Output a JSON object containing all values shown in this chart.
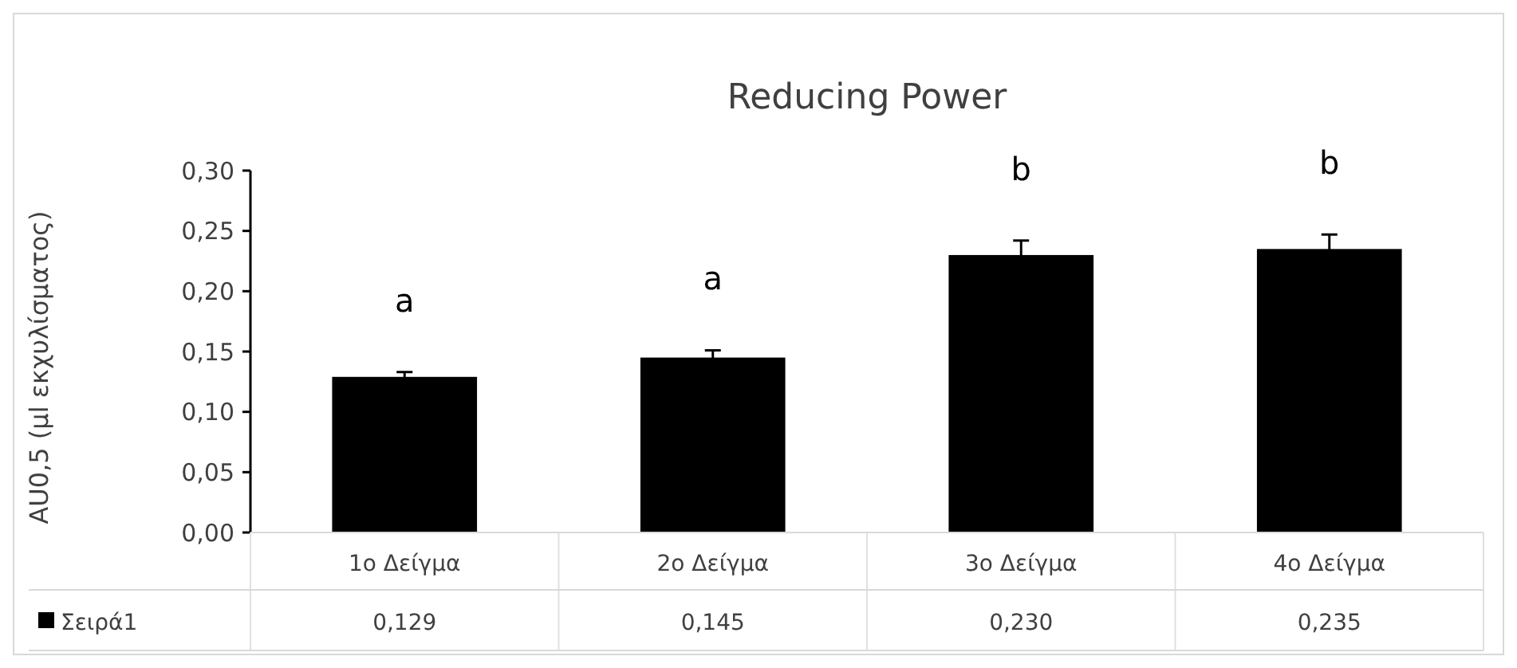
{
  "chart_data": {
    "type": "bar",
    "title": "Reducing Power",
    "ylabel": "AU0,5 (μl εκχυλίσματος)",
    "categories": [
      "1ο Δείγμα",
      "2ο Δείγμα",
      "3ο Δείγμα",
      "4ο Δείγμα"
    ],
    "series": [
      {
        "name": "Σειρά1",
        "color": "#000000",
        "values": [
          0.129,
          0.145,
          0.23,
          0.235
        ],
        "errors": [
          0.004,
          0.006,
          0.012,
          0.012
        ],
        "value_labels": [
          "0,129",
          "0,145",
          "0,230",
          "0,235"
        ]
      }
    ],
    "ylim": [
      0,
      0.3
    ],
    "yticks": [
      {
        "value": 0,
        "label": "0,00"
      },
      {
        "value": 0.05,
        "label": "0,05"
      },
      {
        "value": 0.1,
        "label": "0,10"
      },
      {
        "value": 0.15,
        "label": "0,15"
      },
      {
        "value": 0.2,
        "label": "0,20"
      },
      {
        "value": 0.25,
        "label": "0,25"
      },
      {
        "value": 0.3,
        "label": "0,30"
      }
    ],
    "legend": "bottom",
    "annotations": [
      "a",
      "a",
      "b",
      "b"
    ]
  }
}
